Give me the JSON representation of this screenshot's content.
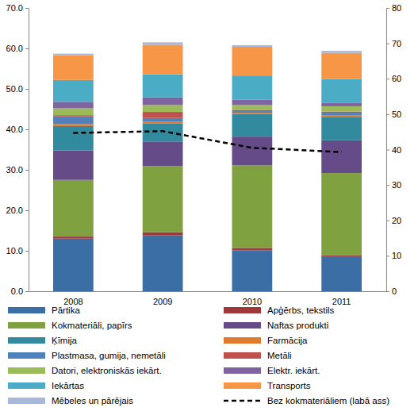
{
  "chart_data": {
    "type": "bar",
    "stacked": true,
    "legend": "bottom",
    "grid": false,
    "categories": [
      "2008",
      "2009",
      "2010",
      "2011"
    ],
    "ylim": [
      0,
      70
    ],
    "yticks": [
      {
        "value": 0,
        "label": "0.0"
      },
      {
        "value": 10,
        "label": "10.0"
      },
      {
        "value": 20,
        "label": "20.0"
      },
      {
        "value": 30,
        "label": "30.0"
      },
      {
        "value": 40,
        "label": "40.0"
      },
      {
        "value": 50,
        "label": "50.0"
      },
      {
        "value": 60,
        "label": "60.0"
      },
      {
        "value": 70,
        "label": "70.0"
      }
    ],
    "y2lim": [
      0,
      80
    ],
    "y2ticks": [
      0,
      10,
      20,
      30,
      40,
      50,
      60,
      70,
      80
    ],
    "series": [
      {
        "name": "Pārtika",
        "color": "#3A6EA5",
        "values": [
          13.0,
          13.8,
          10.1,
          8.6
        ]
      },
      {
        "name": "Apģērbs, tekstils",
        "color": "#A0383A",
        "values": [
          0.5,
          0.8,
          0.6,
          0.3
        ]
      },
      {
        "name": "Kokmateriāli, papīrs",
        "color": "#7FA13F",
        "values": [
          14.0,
          16.3,
          20.4,
          20.3
        ]
      },
      {
        "name": "Naftas produkti",
        "color": "#654C89",
        "values": [
          7.3,
          6.1,
          7.1,
          8.1
        ]
      },
      {
        "name": "Ķīmija",
        "color": "#328A9E",
        "values": [
          6.0,
          4.4,
          5.6,
          5.8
        ]
      },
      {
        "name": "Farmācija",
        "color": "#DE7B2E",
        "values": [
          0.5,
          0.5,
          0.3,
          0.3
        ]
      },
      {
        "name": "Plastmasa, gumija, nemetāli",
        "color": "#4F81BD",
        "values": [
          1.9,
          0.9,
          0.4,
          0.7
        ]
      },
      {
        "name": "Metāli",
        "color": "#C0504D",
        "values": [
          0.3,
          1.5,
          0.3,
          0.3
        ]
      },
      {
        "name": "Datori, elektroniskās iekārt.",
        "color": "#9BBB59",
        "values": [
          1.7,
          1.7,
          1.2,
          1.3
        ]
      },
      {
        "name": "Elektr. iekārt.",
        "color": "#8064A2",
        "values": [
          1.6,
          1.9,
          1.3,
          0.8
        ]
      },
      {
        "name": "Iekārtas",
        "color": "#4BACC6",
        "values": [
          5.4,
          5.7,
          6.0,
          5.9
        ]
      },
      {
        "name": "Transports",
        "color": "#F79646",
        "values": [
          6.1,
          7.3,
          7.1,
          6.5
        ]
      },
      {
        "name": "Mēbeles un pārējais",
        "color": "#A9B7D9",
        "values": [
          0.4,
          0.6,
          0.4,
          0.5
        ]
      },
      {
        "name": "Bez kokmateriāliem (labā ass)",
        "type": "line",
        "axis": "y2",
        "line_style": "dashed",
        "color": "#000000",
        "values": [
          44.7,
          45.2,
          40.5,
          39.3
        ]
      }
    ]
  }
}
